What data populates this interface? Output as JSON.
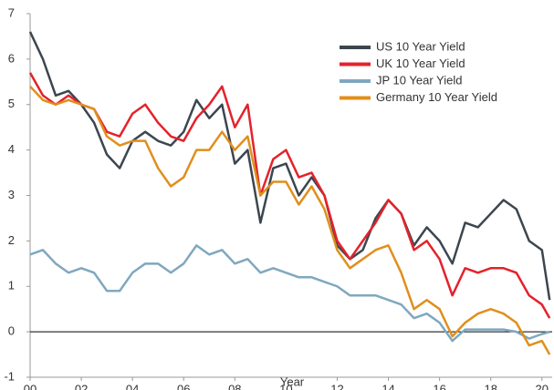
{
  "chart_data": {
    "type": "line",
    "x_label": "Year",
    "x": [
      2000,
      2000.5,
      2001,
      2001.5,
      2002,
      2002.5,
      2003,
      2003.5,
      2004,
      2004.5,
      2005,
      2005.5,
      2006,
      2006.5,
      2007,
      2007.5,
      2008,
      2008.5,
      2009,
      2009.5,
      2010,
      2010.5,
      2011,
      2011.5,
      2012,
      2012.5,
      2013,
      2013.5,
      2014,
      2014.5,
      2015,
      2015.5,
      2016,
      2016.5,
      2017,
      2017.5,
      2018,
      2018.5,
      2019,
      2019.5,
      2020,
      2020.3
    ],
    "series": [
      {
        "name": "US 10 Year Yield",
        "color": "#3c4650",
        "values": [
          6.6,
          6.0,
          5.2,
          5.3,
          5.0,
          4.6,
          3.9,
          3.6,
          4.2,
          4.4,
          4.2,
          4.1,
          4.4,
          5.1,
          4.7,
          5.0,
          3.7,
          4.0,
          2.4,
          3.6,
          3.7,
          3.0,
          3.4,
          3.0,
          1.9,
          1.6,
          1.8,
          2.5,
          2.9,
          2.6,
          1.9,
          2.3,
          2.0,
          1.5,
          2.4,
          2.3,
          2.6,
          2.9,
          2.7,
          2.0,
          1.8,
          0.7
        ]
      },
      {
        "name": "UK 10 Year Yield",
        "color": "#e4222b",
        "values": [
          5.7,
          5.2,
          5.0,
          5.2,
          5.0,
          4.9,
          4.4,
          4.3,
          4.8,
          5.0,
          4.6,
          4.3,
          4.2,
          4.7,
          5.0,
          5.4,
          4.5,
          5.0,
          3.0,
          3.8,
          4.0,
          3.4,
          3.5,
          3.0,
          2.0,
          1.6,
          2.0,
          2.4,
          2.9,
          2.6,
          1.8,
          2.0,
          1.6,
          0.8,
          1.4,
          1.3,
          1.4,
          1.4,
          1.3,
          0.8,
          0.6,
          0.3
        ]
      },
      {
        "name": "JP 10 Year Yield",
        "color": "#7fa8bf",
        "values": [
          1.7,
          1.8,
          1.5,
          1.3,
          1.4,
          1.3,
          0.9,
          0.9,
          1.3,
          1.5,
          1.5,
          1.3,
          1.5,
          1.9,
          1.7,
          1.8,
          1.5,
          1.6,
          1.3,
          1.4,
          1.3,
          1.2,
          1.2,
          1.1,
          1.0,
          0.8,
          0.8,
          0.8,
          0.7,
          0.6,
          0.3,
          0.4,
          0.2,
          -0.2,
          0.05,
          0.05,
          0.05,
          0.05,
          0.0,
          -0.15,
          -0.05,
          0.0
        ]
      },
      {
        "name": "Germany 10 Year Yield",
        "color": "#e08f1d",
        "values": [
          5.4,
          5.1,
          5.0,
          5.1,
          5.0,
          4.9,
          4.3,
          4.1,
          4.2,
          4.2,
          3.6,
          3.2,
          3.4,
          4.0,
          4.0,
          4.4,
          4.0,
          4.3,
          3.0,
          3.3,
          3.3,
          2.8,
          3.2,
          2.7,
          1.8,
          1.4,
          1.6,
          1.8,
          1.9,
          1.3,
          0.5,
          0.7,
          0.5,
          -0.1,
          0.2,
          0.4,
          0.5,
          0.4,
          0.2,
          -0.3,
          -0.2,
          -0.5
        ]
      }
    ],
    "xlim": [
      2000,
      2020.4
    ],
    "xticks": [
      {
        "value": 2000,
        "label": "00"
      },
      {
        "value": 2002,
        "label": "02"
      },
      {
        "value": 2004,
        "label": "04"
      },
      {
        "value": 2006,
        "label": "06"
      },
      {
        "value": 2008,
        "label": "08"
      },
      {
        "value": 2010,
        "label": "10"
      },
      {
        "value": 2012,
        "label": "12"
      },
      {
        "value": 2014,
        "label": "14"
      },
      {
        "value": 2016,
        "label": "16"
      },
      {
        "value": 2018,
        "label": "18"
      },
      {
        "value": 2020,
        "label": "20"
      }
    ],
    "ylim": [
      -1,
      7
    ],
    "yticks": [
      -1,
      0,
      1,
      2,
      3,
      4,
      5,
      6,
      7
    ],
    "grid": false,
    "legend": "upper right"
  }
}
